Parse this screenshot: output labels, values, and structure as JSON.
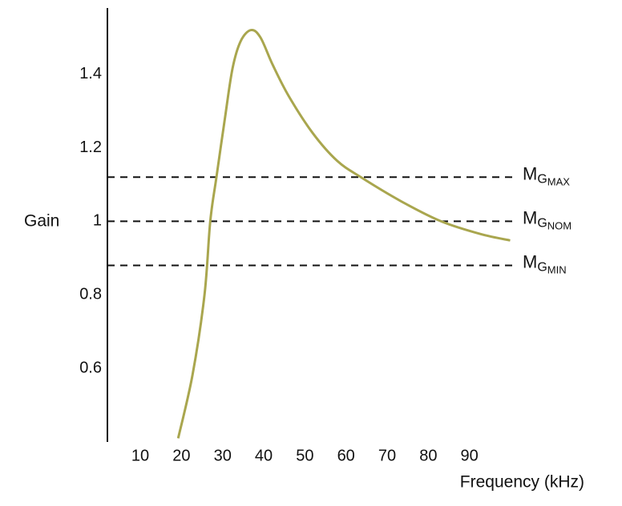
{
  "chart_data": {
    "type": "line",
    "x_label": "Frequency (kHz)",
    "y_label": "Gain",
    "xlim": [
      2,
      100
    ],
    "ylim": [
      0.4,
      1.58
    ],
    "xticks": [
      10,
      20,
      30,
      40,
      50,
      60,
      70,
      80,
      90
    ],
    "yticks": [
      0.6,
      0.8,
      1,
      1.2,
      1.4
    ],
    "series": [
      {
        "color": "#a9a64e",
        "x": [
          19.2,
          22.7,
          25.6,
          27.0,
          28.5,
          30.5,
          32.4,
          34.4,
          36.9,
          39.2,
          42.2,
          46.1,
          51.9,
          57.8,
          63.6,
          73.3,
          83.1,
          92.8,
          99.9
        ],
        "values": [
          0.41,
          0.583,
          0.8,
          1.0,
          1.12,
          1.275,
          1.415,
          1.49,
          1.52,
          1.5,
          1.425,
          1.34,
          1.24,
          1.165,
          1.12,
          1.055,
          1.0,
          0.965,
          0.948
        ]
      }
    ],
    "reference_lines": [
      {
        "value": 1.12,
        "label": {
          "main": "M",
          "sub": "G",
          "subsub": "MAX"
        }
      },
      {
        "value": 1.0,
        "label": {
          "main": "M",
          "sub": "G",
          "subsub": "NOM"
        }
      },
      {
        "value": 0.88,
        "label": {
          "main": "M",
          "sub": "G",
          "subsub": "MIN"
        }
      }
    ]
  }
}
